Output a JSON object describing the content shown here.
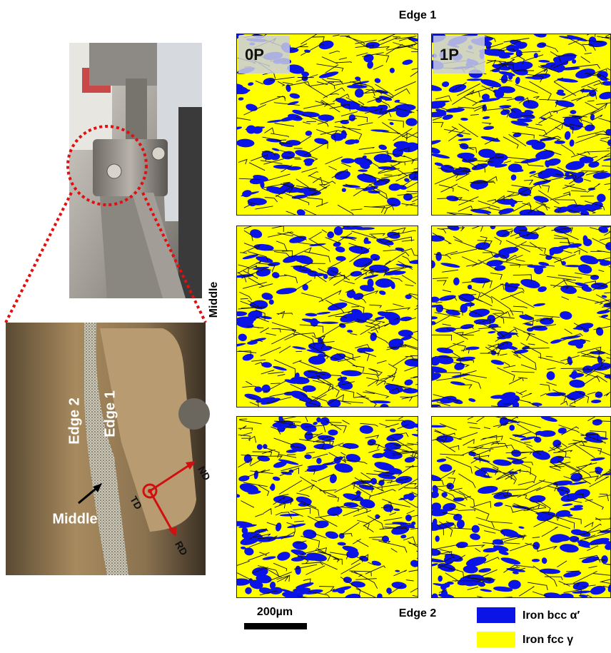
{
  "header": {
    "top_label": "Edge 1",
    "side_label": "Middle",
    "bottom_label": "Edge 2"
  },
  "panels": [
    {
      "label": "0P"
    },
    {
      "label": "1P"
    }
  ],
  "photo": {
    "edge2": "Edge 2",
    "edge1": "Edge 1",
    "middle": "Middle",
    "td": "TD",
    "nd": "ND",
    "rd": "RD"
  },
  "scale_bar": {
    "label": "200µm"
  },
  "legend": [
    {
      "label": "Iron bcc α′",
      "color": "#0a14e6"
    },
    {
      "label": "Iron fcc γ",
      "color": "#ffff00"
    }
  ]
}
